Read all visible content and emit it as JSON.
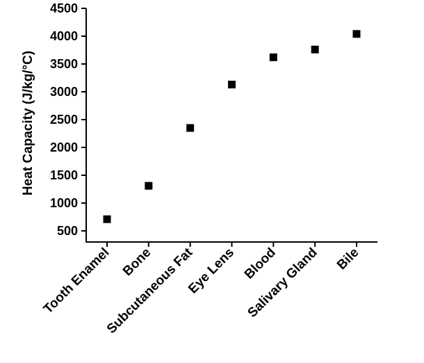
{
  "chart_data": {
    "type": "scatter",
    "title": "",
    "xlabel": "",
    "ylabel": "Heat Capacity (J/kg/°C)",
    "categories": [
      "Tooth Enamel",
      "Bone",
      "Subcutaneous Fat",
      "Eye Lens",
      "Blood",
      "Salivary Gland",
      "Bile"
    ],
    "values": [
      710,
      1310,
      2350,
      3130,
      3620,
      3760,
      4040
    ],
    "ylim": [
      300,
      4500
    ],
    "yticks": [
      "500",
      "1000",
      "1500",
      "2000",
      "2500",
      "3000",
      "3500",
      "4000",
      "4500"
    ],
    "marker_color": "#000000",
    "marker": "square",
    "grid": false,
    "legend": "none"
  }
}
